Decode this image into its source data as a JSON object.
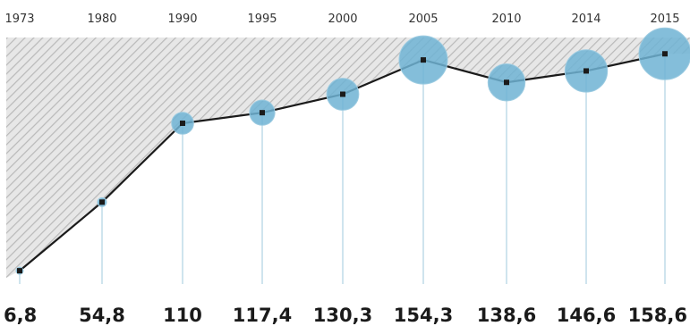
{
  "colors": {
    "line": "#1b1b1b",
    "bubble": "#6fb3d4",
    "bubble_outline": "#9ccbe1",
    "drop_line": "#bfdce9",
    "hatch_background": "#e7e7e7",
    "hatch_stripes": "#b9b9b9"
  },
  "chart_data": {
    "type": "line",
    "title": "",
    "xlabel": "",
    "ylabel": "",
    "x": [
      "1973",
      "1980",
      "1990",
      "1995",
      "2000",
      "2005",
      "2010",
      "2014",
      "2015"
    ],
    "values": [
      6.8,
      54.8,
      110,
      117.4,
      130.3,
      154.3,
      138.6,
      146.6,
      158.6
    ],
    "value_labels": [
      "6,8",
      "54,8",
      "110",
      "117,4",
      "130,3",
      "154,3",
      "138,6",
      "146,6",
      "158,6"
    ],
    "ylim": [
      0,
      170
    ],
    "grid": false,
    "area_above_line": "hatched",
    "markers": "circles sized by value"
  }
}
